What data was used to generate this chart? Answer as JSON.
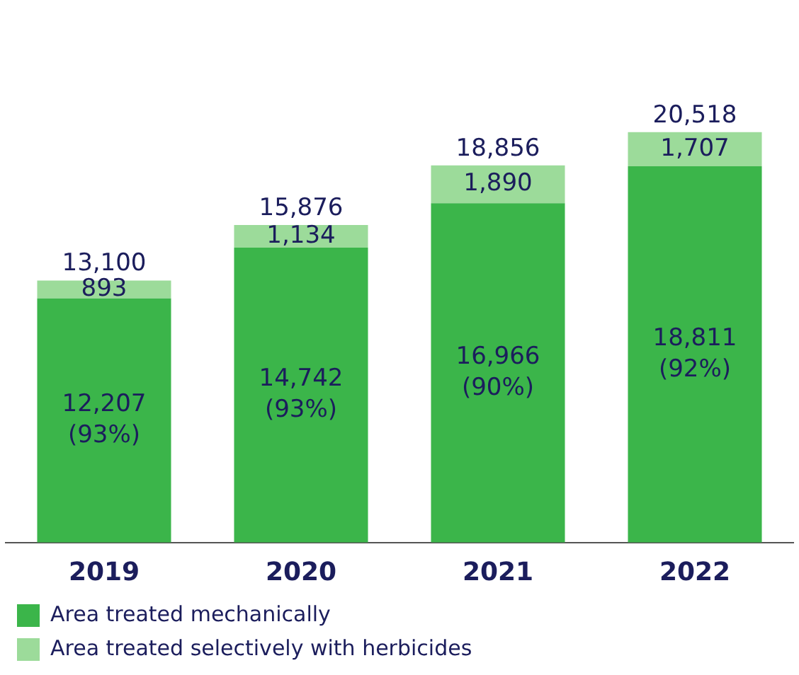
{
  "chart_data": {
    "type": "bar",
    "stacked": true,
    "categories": [
      "2019",
      "2020",
      "2021",
      "2022"
    ],
    "series": [
      {
        "name": "Area treated mechanically",
        "color": "#3bb54a",
        "values": [
          12207,
          14742,
          16966,
          18811
        ],
        "value_labels": [
          "12,207\n(93%)",
          "14,742\n(93%)",
          "16,966\n(90%)",
          "18,811\n(92%)"
        ]
      },
      {
        "name": "Area treated selectively with herbicides",
        "color": "#9cdb9a",
        "values": [
          893,
          1134,
          1890,
          1707
        ],
        "value_labels": [
          "893",
          "1,134",
          "1,890",
          "1,707"
        ]
      }
    ],
    "totals": [
      "13,100",
      "15,876",
      "18,856",
      "20,518"
    ],
    "grid": false,
    "legend": "bottom",
    "tick_labels": "x"
  }
}
